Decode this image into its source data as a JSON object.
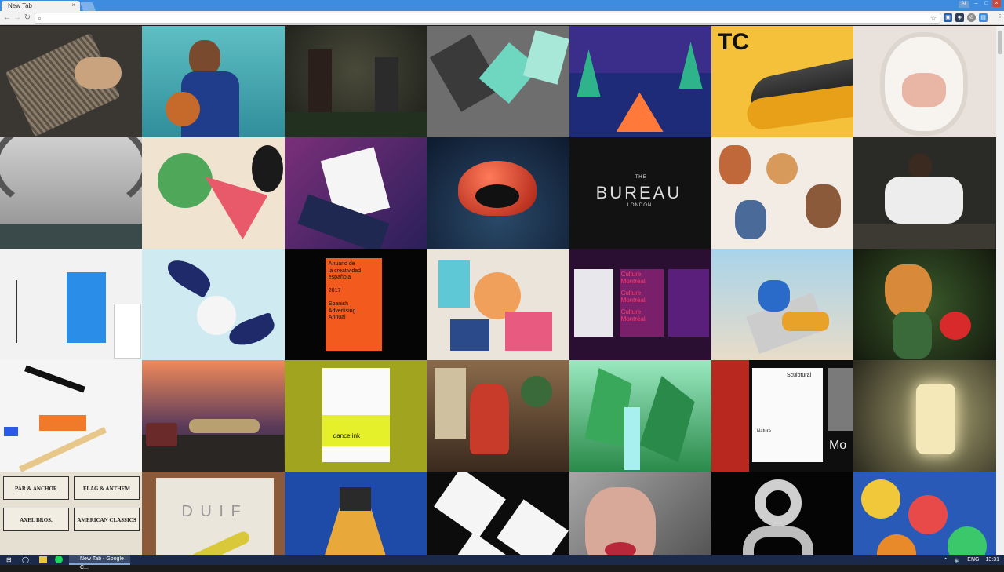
{
  "browser": {
    "tab_title": "New Tab",
    "tab_close": "×",
    "profile_label": "Ali",
    "omnibox_value": "",
    "window_minimize": "–",
    "window_maximize": "□",
    "window_close": "×"
  },
  "grid": {
    "tiles": [
      {
        "name": "business-cards"
      },
      {
        "name": "basketball-player"
      },
      {
        "name": "forest-portrait"
      },
      {
        "name": "brand-stationery"
      },
      {
        "name": "campfire-illustration"
      },
      {
        "name": "tc-yellow-product"
      },
      {
        "name": "white-monkey"
      },
      {
        "name": "warehouse-hall"
      },
      {
        "name": "abstract-illustration"
      },
      {
        "name": "purple-brochure"
      },
      {
        "name": "ladybug"
      },
      {
        "name": "bureau-london"
      },
      {
        "name": "cartoon-characters"
      },
      {
        "name": "karate-kid"
      },
      {
        "name": "white-stationery"
      },
      {
        "name": "bird-3d"
      },
      {
        "name": "anuario-book"
      },
      {
        "name": "abstract-shapes"
      },
      {
        "name": "culture-montreal"
      },
      {
        "name": "woman-on-stairs"
      },
      {
        "name": "carrot-creature"
      },
      {
        "name": "architecture-render"
      },
      {
        "name": "desert-car"
      },
      {
        "name": "dance-ink-magazine"
      },
      {
        "name": "woman-in-room"
      },
      {
        "name": "green-fantasy-landscape"
      },
      {
        "name": "sculptural-layout"
      },
      {
        "name": "glowing-portal"
      },
      {
        "name": "vintage-labels"
      },
      {
        "name": "duif-book"
      },
      {
        "name": "bowling-alley"
      },
      {
        "name": "black-white-cards"
      },
      {
        "name": "face-closeup"
      },
      {
        "name": "chrome-typography"
      },
      {
        "name": "colorful-characters"
      }
    ],
    "texts": {
      "tc": "TC",
      "bureau_the": "THE",
      "bureau_main": "BUREAU",
      "bureau_london": "LONDON",
      "anuario": [
        "Anuario de",
        "la creatividad",
        "española",
        "",
        "2017",
        "",
        "Spanish",
        "Advertising",
        "Annual"
      ],
      "culture": [
        "Culture",
        "Montréal"
      ],
      "dance_ink": "dance ink",
      "sculptural": "Sculptural",
      "nature": "Nature",
      "mo": "Mo",
      "duif": "D U I F",
      "labels": [
        "PAR & ANCHOR",
        "FLAG & ANTHEM",
        "AXEL BROS.",
        "AMERICAN CLASSICS"
      ]
    }
  },
  "taskbar": {
    "app_label": "New Tab - Google C...",
    "language": "ENG",
    "clock": "13:31"
  }
}
